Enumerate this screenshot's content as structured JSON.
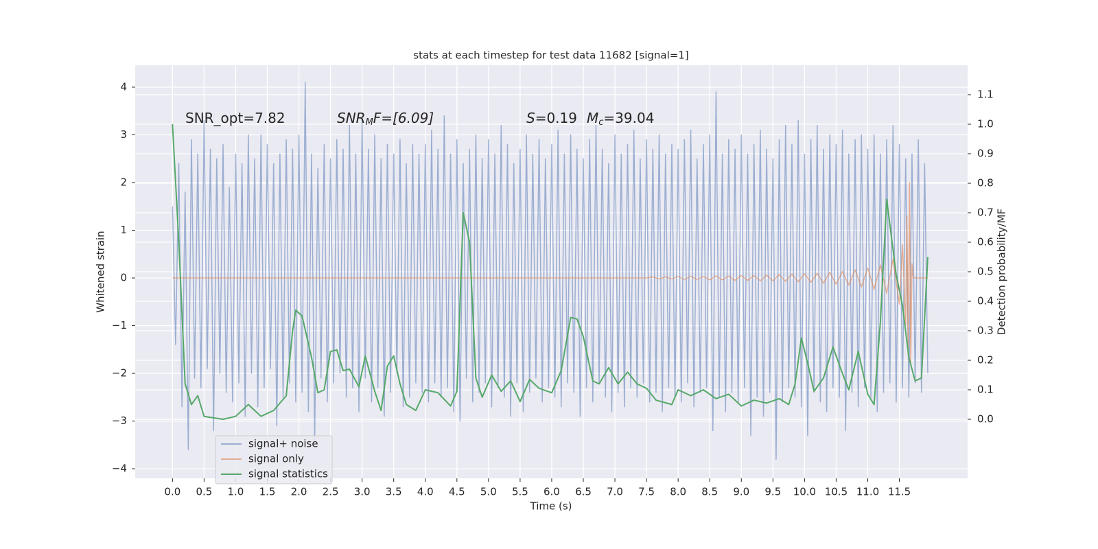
{
  "chart_data": {
    "type": "line",
    "title": "stats at each timestep for test data 11682 [signal=1]",
    "xlabel": "Time (s)",
    "ylabel": "Whitened strain",
    "y2label": "Detection probability/MF",
    "annotations": [
      [
        "SNR_opt=7.82"
      ],
      [
        "SNR",
        "M",
        "F=[6.09]"
      ],
      [
        "S",
        "=0.19",
        "M",
        "c",
        "=39.04"
      ]
    ],
    "grid": true,
    "legend": "lower left",
    "xlim": [
      -0.59,
      12.58
    ],
    "ylim": [
      -4.2,
      4.46
    ],
    "y2lim": [
      -0.2,
      1.2
    ],
    "xticks": [
      {
        "value": 0,
        "label": "0.0"
      },
      {
        "value": 0.5,
        "label": "0.5"
      },
      {
        "value": 1,
        "label": "1.0"
      },
      {
        "value": 1.5,
        "label": "1.5"
      },
      {
        "value": 2,
        "label": "2.0"
      },
      {
        "value": 2.5,
        "label": "2.5"
      },
      {
        "value": 3,
        "label": "3.0"
      },
      {
        "value": 3.5,
        "label": "3.5"
      },
      {
        "value": 4,
        "label": "4.0"
      },
      {
        "value": 4.5,
        "label": "4.5"
      },
      {
        "value": 5,
        "label": "5.0"
      },
      {
        "value": 5.5,
        "label": "5.5"
      },
      {
        "value": 6,
        "label": "6.0"
      },
      {
        "value": 6.5,
        "label": "6.5"
      },
      {
        "value": 7,
        "label": "7.0"
      },
      {
        "value": 7.5,
        "label": "7.5"
      },
      {
        "value": 8,
        "label": "8.0"
      },
      {
        "value": 8.5,
        "label": "8.5"
      },
      {
        "value": 9,
        "label": "9.0"
      },
      {
        "value": 9.5,
        "label": "9.5"
      },
      {
        "value": 10,
        "label": "10.0"
      },
      {
        "value": 10.5,
        "label": "10.5"
      },
      {
        "value": 11,
        "label": "11.0"
      },
      {
        "value": 11.5,
        "label": "11.5"
      }
    ],
    "yticks": [
      {
        "value": -4,
        "label": "−4"
      },
      {
        "value": -3,
        "label": "−3"
      },
      {
        "value": -2,
        "label": "−2"
      },
      {
        "value": -1,
        "label": "−1"
      },
      0,
      1,
      2,
      3,
      4
    ],
    "y2ticks": [
      {
        "value": 0,
        "label": "0.0"
      },
      {
        "value": 0.1,
        "label": "0.1"
      },
      {
        "value": 0.2,
        "label": "0.2"
      },
      {
        "value": 0.3,
        "label": "0.3"
      },
      {
        "value": 0.4,
        "label": "0.4"
      },
      {
        "value": 0.5,
        "label": "0.5"
      },
      {
        "value": 0.6,
        "label": "0.6"
      },
      {
        "value": 0.7,
        "label": "0.7"
      },
      {
        "value": 0.8,
        "label": "0.8"
      },
      {
        "value": 0.9,
        "label": "0.9"
      },
      {
        "value": 1,
        "label": "1.0"
      },
      {
        "value": 1.1,
        "label": "1.1"
      }
    ],
    "series": [
      {
        "name": "signal+ noise",
        "color": "#4c72b0",
        "opacity": 0.5,
        "x": [
          0,
          0.05,
          0.1,
          0.15,
          0.2,
          0.25,
          0.3,
          0.35,
          0.4,
          0.45,
          0.5,
          0.55,
          0.6,
          0.65,
          0.7,
          0.75,
          0.8,
          0.85,
          0.9,
          0.95,
          1,
          1.05,
          1.1,
          1.15,
          1.2,
          1.25,
          1.3,
          1.35,
          1.4,
          1.45,
          1.5,
          1.55,
          1.6,
          1.65,
          1.7,
          1.75,
          1.8,
          1.85,
          1.9,
          1.95,
          2,
          2.05,
          2.1,
          2.15,
          2.2,
          2.25,
          2.3,
          2.35,
          2.4,
          2.45,
          2.5,
          2.55,
          2.6,
          2.65,
          2.7,
          2.75,
          2.8,
          2.85,
          2.9,
          2.95,
          3,
          3.05,
          3.1,
          3.15,
          3.2,
          3.25,
          3.3,
          3.35,
          3.4,
          3.45,
          3.5,
          3.55,
          3.6,
          3.65,
          3.7,
          3.75,
          3.8,
          3.85,
          3.9,
          3.95,
          4,
          4.05,
          4.1,
          4.15,
          4.2,
          4.25,
          4.3,
          4.35,
          4.4,
          4.45,
          4.5,
          4.55,
          4.6,
          4.65,
          4.7,
          4.75,
          4.8,
          4.85,
          4.9,
          4.95,
          5,
          5.05,
          5.1,
          5.15,
          5.2,
          5.25,
          5.3,
          5.35,
          5.4,
          5.45,
          5.5,
          5.55,
          5.6,
          5.65,
          5.7,
          5.75,
          5.8,
          5.85,
          5.9,
          5.95,
          6,
          6.05,
          6.1,
          6.15,
          6.2,
          6.25,
          6.3,
          6.35,
          6.4,
          6.45,
          6.5,
          6.55,
          6.6,
          6.65,
          6.7,
          6.75,
          6.8,
          6.85,
          6.9,
          6.95,
          7,
          7.05,
          7.1,
          7.15,
          7.2,
          7.25,
          7.3,
          7.35,
          7.4,
          7.45,
          7.5,
          7.55,
          7.6,
          7.65,
          7.7,
          7.75,
          7.8,
          7.85,
          7.9,
          7.95,
          8,
          8.05,
          8.1,
          8.15,
          8.2,
          8.25,
          8.3,
          8.35,
          8.4,
          8.45,
          8.5,
          8.55,
          8.6,
          8.65,
          8.7,
          8.75,
          8.8,
          8.85,
          8.9,
          8.95,
          9,
          9.05,
          9.1,
          9.15,
          9.2,
          9.25,
          9.3,
          9.35,
          9.4,
          9.45,
          9.5,
          9.55,
          9.6,
          9.65,
          9.7,
          9.75,
          9.8,
          9.85,
          9.9,
          9.95,
          10,
          10.05,
          10.1,
          10.15,
          10.2,
          10.25,
          10.3,
          10.35,
          10.4,
          10.45,
          10.5,
          10.55,
          10.6,
          10.65,
          10.7,
          10.75,
          10.8,
          10.85,
          10.9,
          10.95,
          11,
          11.05,
          11.1,
          11.15,
          11.2,
          11.25,
          11.3,
          11.35,
          11.4,
          11.45,
          11.5,
          11.55,
          11.6,
          11.65,
          11.7,
          11.75,
          11.8,
          11.85,
          11.9,
          11.95
        ],
        "values": [
          1.5,
          -1.4,
          2.4,
          -2.7,
          1.8,
          -3.6,
          2.9,
          -2.1,
          2.6,
          -2.3,
          3.3,
          -1.9,
          2.7,
          -3.2,
          2.5,
          -2.0,
          2.8,
          -2.4,
          1.9,
          -2.6,
          2.6,
          -2.2,
          2.4,
          -2.9,
          3.0,
          -2.0,
          2.5,
          -2.7,
          3.0,
          -2.3,
          2.8,
          -1.9,
          2.4,
          -3.1,
          2.6,
          -2.5,
          2.9,
          -2.2,
          2.7,
          -2.6,
          3.0,
          -2.4,
          4.1,
          -2.8,
          2.6,
          -3.4,
          2.3,
          -2.1,
          2.8,
          -2.6,
          2.5,
          -2.2,
          2.9,
          -2.0,
          2.7,
          -2.5,
          3.2,
          -2.3,
          2.6,
          -2.8,
          3.3,
          -2.1,
          2.7,
          -2.6,
          3.0,
          -2.3,
          2.5,
          -2.9,
          2.8,
          -2.4,
          2.6,
          -2.0,
          2.9,
          -2.7,
          2.4,
          -2.5,
          2.8,
          -2.2,
          2.6,
          -2.4,
          2.8,
          -2.6,
          3.1,
          -2.2,
          2.7,
          -2.5,
          3.4,
          -2.3,
          2.6,
          -2.8,
          2.9,
          -3.0,
          2.4,
          -2.1,
          2.7,
          -2.6,
          3.0,
          -2.4,
          2.5,
          -2.2,
          2.9,
          -2.7,
          2.6,
          -2.3,
          3.2,
          -2.5,
          2.8,
          -2.9,
          2.4,
          -2.2,
          2.7,
          -2.8,
          3.0,
          -2.4,
          2.6,
          -2.1,
          2.9,
          -2.6,
          2.5,
          -2.3,
          2.8,
          -2.5,
          3.1,
          -2.7,
          2.6,
          -2.2,
          3.0,
          -2.4,
          2.7,
          -2.9,
          2.5,
          -2.3,
          2.9,
          -2.6,
          3.2,
          -2.2,
          2.7,
          -2.5,
          2.4,
          -2.8,
          3.0,
          -2.4,
          2.6,
          -2.7,
          2.8,
          -2.3,
          3.1,
          -2.5,
          2.5,
          -2.2,
          2.9,
          -2.6,
          2.7,
          -2.4,
          3.0,
          -2.8,
          2.6,
          -2.3,
          2.8,
          -2.5,
          2.7,
          -2.6,
          2.9,
          -2.2,
          3.1,
          -2.7,
          2.5,
          -2.4,
          2.8,
          -2.3,
          3.0,
          -3.2,
          3.9,
          -2.5,
          2.6,
          -2.8,
          2.9,
          -2.4,
          2.7,
          -2.6,
          3.0,
          -2.3,
          2.6,
          -3.3,
          2.8,
          -2.5,
          3.1,
          -2.9,
          2.7,
          -2.4,
          2.5,
          -3.8,
          2.9,
          -2.6,
          3.2,
          -2.3,
          2.8,
          -2.5,
          3.3,
          -2.7,
          2.6,
          -3.3,
          2.9,
          -2.4,
          3.2,
          -2.6,
          2.7,
          -2.8,
          3.0,
          -2.3,
          2.8,
          -2.5,
          3.1,
          -3.2,
          2.6,
          -2.4,
          2.9,
          -2.7,
          3.0,
          -2.3,
          2.7,
          -2.5,
          3.0,
          -2.8,
          2.6,
          -2.4,
          2.9,
          -2.2,
          3.2,
          -2.6,
          2.8,
          -2.3,
          2.5,
          -2.5,
          2.6,
          -2.2,
          2.9,
          -2.4,
          2.4,
          -2.0
        ]
      },
      {
        "name": "signal only",
        "color": "#dd8452",
        "opacity": 0.6,
        "x": [
          0,
          7.5,
          7.6,
          7.7,
          7.8,
          7.9,
          8,
          8.1,
          8.2,
          8.3,
          8.4,
          8.5,
          8.6,
          8.7,
          8.8,
          8.9,
          9,
          9.1,
          9.2,
          9.3,
          9.4,
          9.5,
          9.6,
          9.7,
          9.8,
          9.9,
          10,
          10.1,
          10.2,
          10.3,
          10.4,
          10.5,
          10.6,
          10.7,
          10.8,
          10.9,
          11,
          11.1,
          11.2,
          11.3,
          11.4,
          11.5,
          11.55,
          11.6,
          11.62,
          11.64,
          11.66,
          11.68,
          11.7,
          11.72,
          11.95
        ],
        "values": [
          0,
          0,
          0.02,
          -0.02,
          0.02,
          -0.02,
          0.03,
          -0.03,
          0.03,
          -0.03,
          0.03,
          -0.04,
          0.04,
          -0.04,
          0.04,
          -0.05,
          0.05,
          -0.05,
          0.05,
          -0.06,
          0.06,
          -0.06,
          0.07,
          -0.07,
          0.08,
          -0.08,
          0.09,
          -0.09,
          0.1,
          -0.11,
          0.12,
          -0.13,
          0.14,
          -0.15,
          0.17,
          -0.19,
          0.21,
          -0.24,
          0.27,
          -0.32,
          0.4,
          -0.55,
          0.7,
          -1.0,
          1.3,
          -1.6,
          2.0,
          -1.8,
          0.3,
          0,
          0
        ]
      },
      {
        "name": "signal statistics",
        "color": "#55a868",
        "opacity": 1,
        "axis": "y2",
        "x": [
          0,
          0.1,
          0.2,
          0.3,
          0.4,
          0.5,
          0.8,
          1,
          1.2,
          1.4,
          1.6,
          1.8,
          1.9,
          1.95,
          2.05,
          2.2,
          2.3,
          2.4,
          2.5,
          2.6,
          2.7,
          2.8,
          2.95,
          3.05,
          3.2,
          3.3,
          3.4,
          3.5,
          3.6,
          3.7,
          3.85,
          4,
          4.2,
          4.4,
          4.5,
          4.6,
          4.7,
          4.8,
          4.9,
          5.05,
          5.2,
          5.35,
          5.5,
          5.65,
          5.8,
          6,
          6.15,
          6.3,
          6.4,
          6.5,
          6.65,
          6.75,
          6.9,
          7.05,
          7.2,
          7.35,
          7.5,
          7.65,
          7.9,
          8,
          8.2,
          8.4,
          8.6,
          8.8,
          9,
          9.2,
          9.4,
          9.6,
          9.75,
          9.85,
          9.95,
          10.05,
          10.15,
          10.3,
          10.45,
          10.6,
          10.7,
          10.85,
          11,
          11.1,
          11.2,
          11.3,
          11.45,
          11.55,
          11.65,
          11.75,
          11.85,
          11.95
        ],
        "values": [
          1.0,
          0.6,
          0.12,
          0.05,
          0.08,
          0.01,
          0,
          0.01,
          0.05,
          0.01,
          0.03,
          0.08,
          0.3,
          0.37,
          0.35,
          0.21,
          0.09,
          0.1,
          0.23,
          0.235,
          0.165,
          0.17,
          0.11,
          0.215,
          0.095,
          0.03,
          0.18,
          0.215,
          0.12,
          0.05,
          0.03,
          0.1,
          0.09,
          0.045,
          0.095,
          0.7,
          0.6,
          0.14,
          0.075,
          0.15,
          0.095,
          0.13,
          0.06,
          0.135,
          0.105,
          0.09,
          0.165,
          0.345,
          0.34,
          0.28,
          0.13,
          0.12,
          0.175,
          0.12,
          0.16,
          0.12,
          0.105,
          0.065,
          0.05,
          0.1,
          0.08,
          0.1,
          0.07,
          0.085,
          0.045,
          0.065,
          0.055,
          0.07,
          0.05,
          0.12,
          0.275,
          0.19,
          0.095,
          0.14,
          0.245,
          0.155,
          0.1,
          0.23,
          0.085,
          0.05,
          0.33,
          0.745,
          0.49,
          0.385,
          0.21,
          0.13,
          0.14,
          0.55
        ]
      }
    ]
  }
}
